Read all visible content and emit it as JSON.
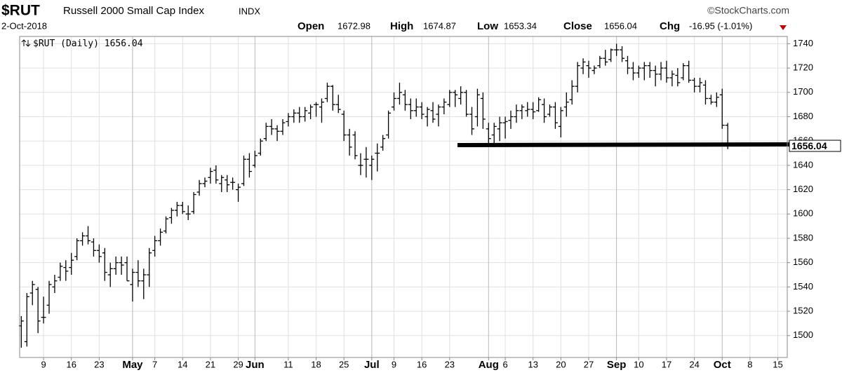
{
  "chart_data": {
    "type": "ohlc",
    "symbol": "$RUT",
    "name": "Russell 2000 Small Cap Index",
    "exchange": "INDX",
    "source": "©StockCharts.com",
    "date": "2-Oct-2018",
    "ohlc_labels": [
      "Open",
      "High",
      "Low",
      "Close",
      "Chg"
    ],
    "change": "-16.95 (-1.01%)",
    "legend": "$RUT (Daily)",
    "color": "#000000",
    "grid": true,
    "open": [
      1508,
      1495,
      1535,
      1538,
      1515,
      1525,
      1540,
      1548,
      1556,
      1556,
      1565,
      1578,
      1582,
      1577,
      1570,
      1568,
      1550,
      1555,
      1560,
      1560,
      1542,
      1552,
      1545,
      1550,
      1570,
      1578,
      1586,
      1597,
      1603,
      1607,
      1600,
      1602,
      1618,
      1625,
      1630,
      1636,
      1625,
      1628,
      1626,
      1620,
      1625,
      1645,
      1640,
      1650,
      1662,
      1672,
      1670,
      1668,
      1676,
      1680,
      1683,
      1680,
      1683,
      1690,
      1688,
      1695,
      1705,
      1690,
      1682,
      1665,
      1665,
      1640,
      1645,
      1640,
      1650,
      1655,
      1665,
      1688,
      1695,
      1698,
      1690,
      1685,
      1688,
      1680,
      1685,
      1682,
      1688,
      1690,
      1700,
      1695,
      1700,
      1682,
      1680,
      1695,
      1670,
      1665,
      1670,
      1675,
      1677,
      1680,
      1685,
      1685,
      1686,
      1685,
      1690,
      1682,
      1688,
      1672,
      1688,
      1694,
      1705,
      1720,
      1722,
      1718,
      1722,
      1728,
      1727,
      1735,
      1735,
      1726,
      1720,
      1716,
      1720,
      1722,
      1718,
      1715,
      1720,
      1712,
      1714,
      1712,
      1722,
      1710,
      1705,
      1706,
      1695,
      1692,
      1698,
      1672.98
    ],
    "high": [
      1516,
      1535,
      1545,
      1540,
      1532,
      1545,
      1550,
      1560,
      1562,
      1568,
      1580,
      1585,
      1590,
      1580,
      1575,
      1572,
      1560,
      1565,
      1565,
      1565,
      1555,
      1562,
      1555,
      1572,
      1582,
      1588,
      1598,
      1605,
      1610,
      1610,
      1607,
      1618,
      1628,
      1630,
      1638,
      1640,
      1632,
      1632,
      1630,
      1625,
      1648,
      1650,
      1652,
      1662,
      1675,
      1678,
      1673,
      1678,
      1683,
      1686,
      1688,
      1688,
      1690,
      1692,
      1695,
      1708,
      1706,
      1698,
      1685,
      1670,
      1668,
      1650,
      1655,
      1648,
      1658,
      1665,
      1685,
      1700,
      1708,
      1702,
      1695,
      1695,
      1692,
      1688,
      1692,
      1690,
      1695,
      1702,
      1702,
      1705,
      1702,
      1688,
      1703,
      1700,
      1675,
      1675,
      1680,
      1680,
      1685,
      1690,
      1690,
      1692,
      1692,
      1696,
      1695,
      1690,
      1692,
      1688,
      1700,
      1710,
      1725,
      1728,
      1726,
      1722,
      1730,
      1735,
      1736,
      1740,
      1738,
      1730,
      1725,
      1722,
      1725,
      1725,
      1722,
      1725,
      1726,
      1718,
      1720,
      1724,
      1726,
      1712,
      1712,
      1710,
      1698,
      1700,
      1703,
      1674.87
    ],
    "low": [
      1490,
      1491,
      1525,
      1502,
      1510,
      1518,
      1535,
      1545,
      1545,
      1550,
      1562,
      1574,
      1575,
      1565,
      1560,
      1545,
      1540,
      1550,
      1550,
      1545,
      1528,
      1540,
      1530,
      1540,
      1565,
      1574,
      1584,
      1592,
      1598,
      1600,
      1595,
      1600,
      1615,
      1622,
      1625,
      1625,
      1618,
      1618,
      1620,
      1610,
      1623,
      1630,
      1638,
      1648,
      1660,
      1665,
      1660,
      1665,
      1672,
      1675,
      1675,
      1676,
      1678,
      1680,
      1675,
      1692,
      1685,
      1683,
      1660,
      1648,
      1645,
      1632,
      1630,
      1628,
      1635,
      1652,
      1662,
      1685,
      1690,
      1685,
      1678,
      1680,
      1678,
      1672,
      1675,
      1672,
      1682,
      1688,
      1688,
      1690,
      1680,
      1665,
      1672,
      1670,
      1658,
      1655,
      1660,
      1662,
      1670,
      1675,
      1678,
      1680,
      1678,
      1684,
      1675,
      1680,
      1670,
      1663,
      1680,
      1690,
      1700,
      1715,
      1712,
      1715,
      1720,
      1722,
      1725,
      1730,
      1725,
      1715,
      1710,
      1712,
      1710,
      1712,
      1705,
      1710,
      1708,
      1705,
      1705,
      1710,
      1708,
      1700,
      1700,
      1690,
      1690,
      1688,
      1670,
      1653.34
    ],
    "close": [
      1512,
      1532,
      1542,
      1512,
      1515,
      1542,
      1545,
      1557,
      1553,
      1562,
      1578,
      1582,
      1578,
      1570,
      1565,
      1552,
      1555,
      1560,
      1558,
      1545,
      1552,
      1545,
      1550,
      1568,
      1578,
      1585,
      1596,
      1603,
      1607,
      1602,
      1600,
      1616,
      1625,
      1627,
      1635,
      1628,
      1630,
      1624,
      1626,
      1622,
      1645,
      1635,
      1648,
      1660,
      1672,
      1670,
      1668,
      1675,
      1680,
      1683,
      1680,
      1685,
      1688,
      1690,
      1692,
      1705,
      1690,
      1686,
      1665,
      1655,
      1648,
      1640,
      1645,
      1645,
      1650,
      1662,
      1683,
      1695,
      1700,
      1690,
      1685,
      1688,
      1682,
      1686,
      1678,
      1688,
      1692,
      1700,
      1698,
      1700,
      1682,
      1670,
      1698,
      1678,
      1662,
      1672,
      1675,
      1676,
      1680,
      1685,
      1688,
      1686,
      1684,
      1694,
      1680,
      1688,
      1675,
      1685,
      1692,
      1705,
      1722,
      1725,
      1720,
      1720,
      1728,
      1725,
      1735,
      1735,
      1728,
      1720,
      1716,
      1720,
      1722,
      1718,
      1715,
      1720,
      1712,
      1715,
      1708,
      1722,
      1710,
      1705,
      1708,
      1695,
      1692,
      1696,
      1672.99,
      1656.04
    ],
    "xlim": [
      -0.3,
      137.7
    ],
    "xticks": [
      {
        "value": 4,
        "label": "9"
      },
      {
        "value": 9,
        "label": "16"
      },
      {
        "value": 14,
        "label": "23"
      },
      {
        "value": 20,
        "label": "May"
      },
      {
        "value": 24,
        "label": "7"
      },
      {
        "value": 29,
        "label": "14"
      },
      {
        "value": 34,
        "label": "21"
      },
      {
        "value": 39,
        "label": "29"
      },
      {
        "value": 42,
        "label": "Jun"
      },
      {
        "value": 48,
        "label": "11"
      },
      {
        "value": 53,
        "label": "18"
      },
      {
        "value": 58,
        "label": "25"
      },
      {
        "value": 63,
        "label": "Jul"
      },
      {
        "value": 67,
        "label": "9"
      },
      {
        "value": 72,
        "label": "16"
      },
      {
        "value": 77,
        "label": "23"
      },
      {
        "value": 84,
        "label": "Aug"
      },
      {
        "value": 87,
        "label": "6"
      },
      {
        "value": 92,
        "label": "13"
      },
      {
        "value": 97,
        "label": "20"
      },
      {
        "value": 102,
        "label": "27"
      },
      {
        "value": 107,
        "label": "Sep"
      },
      {
        "value": 111,
        "label": "10"
      },
      {
        "value": 116,
        "label": "17"
      },
      {
        "value": 121,
        "label": "24"
      },
      {
        "value": 126,
        "label": "Oct"
      },
      {
        "value": 131,
        "label": "8"
      },
      {
        "value": 136,
        "label": "15"
      }
    ],
    "ylim": [
      1482,
      1746
    ],
    "yticks": [
      1500,
      1520,
      1540,
      1560,
      1580,
      1600,
      1620,
      1640,
      1660,
      1680,
      1700,
      1720,
      1740
    ]
  }
}
